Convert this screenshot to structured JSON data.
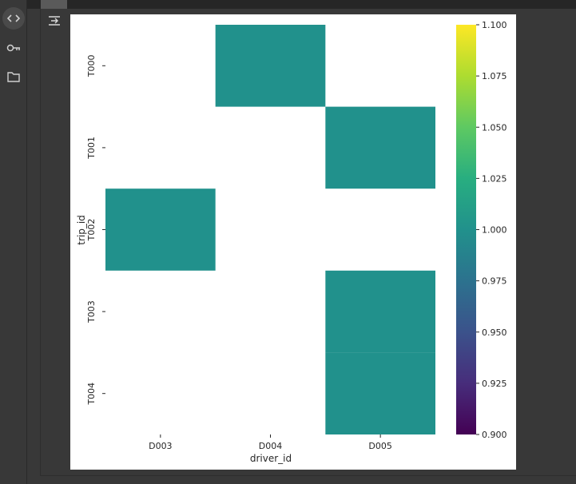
{
  "sidebar": {
    "items": [
      {
        "name": "code",
        "icon": "code-icon"
      },
      {
        "name": "secrets",
        "icon": "key-icon"
      },
      {
        "name": "files",
        "icon": "folder-icon"
      }
    ]
  },
  "output": {
    "toggle_icon": "output-collapse-icon"
  },
  "chart_data": {
    "type": "heatmap",
    "title": "",
    "xlabel": "driver_id",
    "ylabel": "trip_id",
    "x_categories": [
      "D003",
      "D004",
      "D005"
    ],
    "y_categories": [
      "T000",
      "T001",
      "T002",
      "T003",
      "T004"
    ],
    "cells": [
      {
        "y": "T000",
        "x": "D004",
        "value": 1.0
      },
      {
        "y": "T001",
        "x": "D005",
        "value": 1.0
      },
      {
        "y": "T002",
        "x": "D003",
        "value": 1.0
      },
      {
        "y": "T003",
        "x": "D005",
        "value": 1.0
      },
      {
        "y": "T004",
        "x": "D005",
        "value": 1.0
      }
    ],
    "colorbar": {
      "colormap": "viridis",
      "range": [
        0.9,
        1.1
      ],
      "ticks": [
        "0.900",
        "0.925",
        "0.950",
        "0.975",
        "1.000",
        "1.025",
        "1.050",
        "1.075",
        "1.100"
      ]
    },
    "cell_color": "#21918c",
    "grid": false
  }
}
